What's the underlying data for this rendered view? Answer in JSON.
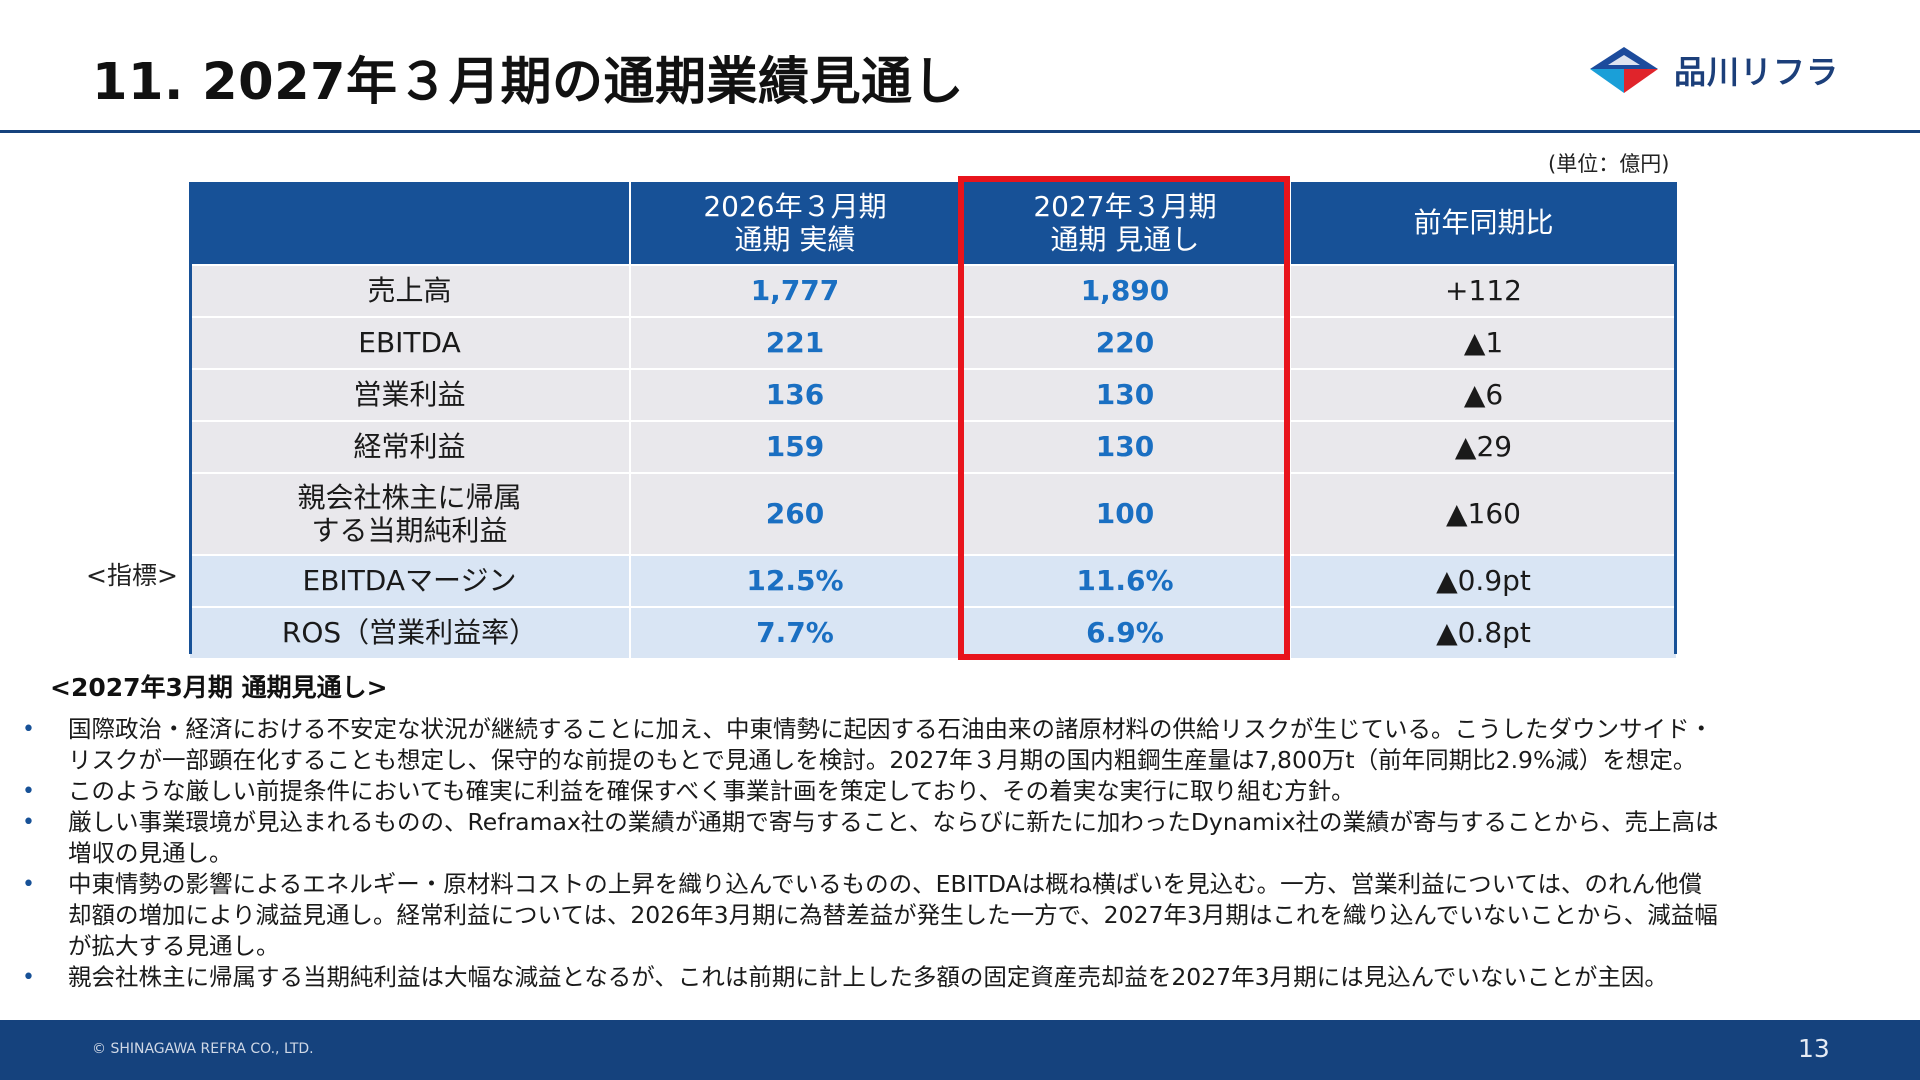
{
  "title": "11. 2027年３月期の通期業績見通し",
  "logo": {
    "text": "品川リフラ"
  },
  "unit_note": "(単位：億円)",
  "indicator_label": "<指標>",
  "table": {
    "headers": {
      "item": "",
      "col2026": [
        "2026年３月期",
        "通期 実績"
      ],
      "col2027": [
        "2027年３月期",
        "通期 見通し"
      ],
      "yoy": "前年同期比"
    },
    "rows": [
      {
        "label": [
          "売上高"
        ],
        "fy2026": "1,777",
        "fy2027": "1,890",
        "yoy": "+112"
      },
      {
        "label": [
          "EBITDA"
        ],
        "fy2026": "221",
        "fy2027": "220",
        "yoy": "▲1"
      },
      {
        "label": [
          "営業利益"
        ],
        "fy2026": "136",
        "fy2027": "130",
        "yoy": "▲6"
      },
      {
        "label": [
          "経常利益"
        ],
        "fy2026": "159",
        "fy2027": "130",
        "yoy": "▲29"
      },
      {
        "label": [
          "親会社株主に帰属",
          "する当期純利益"
        ],
        "fy2026": "260",
        "fy2027": "100",
        "yoy": "▲160"
      },
      {
        "label": [
          "EBITDAマージン"
        ],
        "fy2026": "12.5%",
        "fy2027": "11.6%",
        "yoy": "▲0.9pt"
      },
      {
        "label": [
          "ROS（営業利益率）"
        ],
        "fy2026": "7.7%",
        "fy2027": "6.9%",
        "yoy": "▲0.8pt"
      }
    ]
  },
  "section_heading": "<2027年3月期 通期見通し>",
  "bullets": [
    [
      "国際政治・経済における不安定な状況が継続することに加え、中東情勢に起因する石油由来の諸原材料の供給リスクが生じている。こうしたダウンサイド・",
      "リスクが一部顕在化することも想定し、保守的な前提のもとで見通しを検討。2027年３月期の国内粗鋼生産量は7,800万t（前年同期比2.9%減）を想定。"
    ],
    [
      "このような厳しい前提条件においても確実に利益を確保すべく事業計画を策定しており、その着実な実行に取り組む方針。"
    ],
    [
      "厳しい事業環境が見込まれるものの、Reframax社の業績が通期で寄与すること、ならびに新たに加わったDynamix社の業績が寄与することから、売上高は",
      "増収の見通し。"
    ],
    [
      "中東情勢の影響によるエネルギー・原材料コストの上昇を織り込んでいるものの、EBITDAは概ね横ばいを見込む。一方、営業利益については、のれん他償",
      "却額の増加により減益見通し。経常利益については、2026年3月期に為替差益が発生した一方で、2027年3月期はこれを織り込んでいないことから、減益幅",
      "が拡大する見通し。"
    ],
    [
      "親会社株主に帰属する当期純利益は大幅な減益となるが、これは前期に計上した多額の固定資産売却益を2027年3月期には見込んでいないことが主因。"
    ]
  ],
  "bullet_marker": "•",
  "footer": {
    "copyright": "© SHINAGAWA REFRA CO., LTD.",
    "page": "13"
  }
}
